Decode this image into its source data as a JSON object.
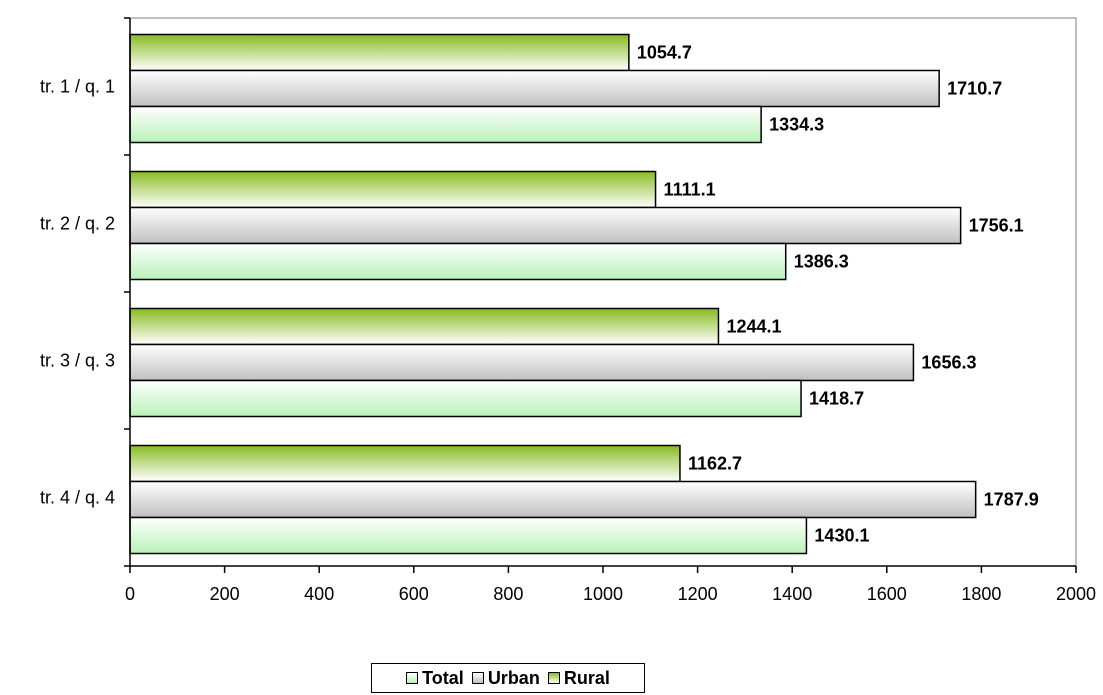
{
  "chart_data": {
    "type": "bar",
    "orientation": "horizontal",
    "categories": [
      "tr. 1 / q. 1",
      "tr. 2 / q. 2",
      "tr. 3 / q. 3",
      "tr. 4 / q. 4"
    ],
    "series": [
      {
        "name": "Total",
        "values": [
          1334.3,
          1386.3,
          1418.7,
          1430.1
        ],
        "color": "#c9f5c9"
      },
      {
        "name": "Urban",
        "values": [
          1710.7,
          1756.1,
          1656.3,
          1787.9
        ],
        "color": "#d4d4d4"
      },
      {
        "name": "Rural",
        "values": [
          1054.7,
          1111.1,
          1244.1,
          1162.7
        ],
        "color": "#99cc33"
      }
    ],
    "xlim": [
      0,
      2000
    ],
    "xticks": [
      0,
      200,
      400,
      600,
      800,
      1000,
      1200,
      1400,
      1600,
      1800,
      2000
    ],
    "grid": false,
    "legend_position": "bottom",
    "legend": [
      "Total",
      "Urban",
      "Rural"
    ]
  }
}
